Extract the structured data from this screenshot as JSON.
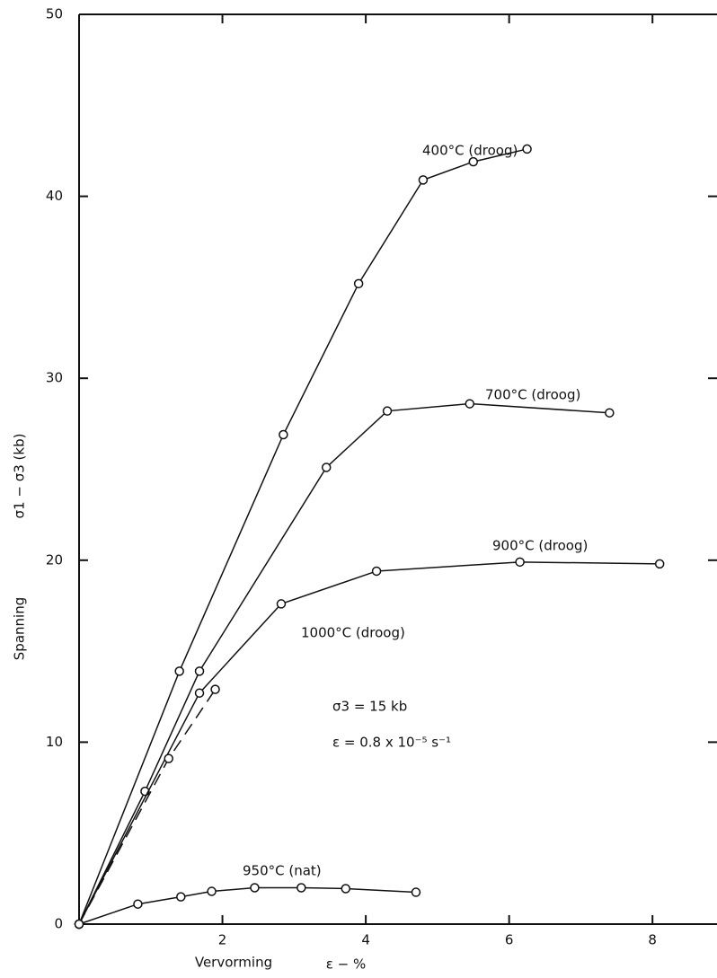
{
  "chart_data": {
    "type": "line",
    "x_label": "Vervorming",
    "x_unit_label": "ε − %",
    "y_label": "Spanning",
    "y_unit_label": "σ1 − σ3 (kb)",
    "annotations": [
      "σ3 = 15 kb",
      "ε = 0.8 x 10⁻⁵ s⁻¹"
    ],
    "xlim": [
      0,
      8.9
    ],
    "xticks": [
      2,
      4,
      6,
      8
    ],
    "ylim": [
      0,
      50
    ],
    "yticks": [
      0,
      10,
      20,
      30,
      40,
      50
    ],
    "series": [
      {
        "name": "400°C (droog)",
        "color": "#111111",
        "style": "solid",
        "x": [
          0,
          1.4,
          2.85,
          3.9,
          4.8,
          5.5,
          6.25
        ],
        "values": [
          0,
          13.9,
          26.9,
          35.2,
          40.9,
          41.9,
          42.6
        ]
      },
      {
        "name": "700°C (droog)",
        "color": "#111111",
        "style": "solid",
        "x": [
          0,
          0.92,
          1.68,
          3.45,
          4.3,
          5.45,
          7.4
        ],
        "values": [
          0,
          7.3,
          13.9,
          25.1,
          28.2,
          28.6,
          28.1
        ]
      },
      {
        "name": "900°C (droog)",
        "color": "#111111",
        "style": "solid",
        "x": [
          0,
          1.68,
          2.82,
          4.15,
          6.15,
          8.1
        ],
        "values": [
          0,
          12.7,
          17.6,
          19.4,
          19.9,
          19.8
        ]
      },
      {
        "name": "1000°C (droog)",
        "color": "#111111",
        "style": "dashed",
        "x": [
          0,
          1.25,
          1.9
        ],
        "values": [
          0,
          9.1,
          12.9
        ]
      },
      {
        "name": "950°C (nat)",
        "color": "#111111",
        "style": "solid",
        "x": [
          0,
          0.82,
          1.42,
          1.85,
          2.45,
          3.1,
          3.72,
          4.7
        ],
        "values": [
          0,
          1.1,
          1.5,
          1.8,
          2.0,
          2.0,
          1.95,
          1.75
        ]
      }
    ]
  }
}
